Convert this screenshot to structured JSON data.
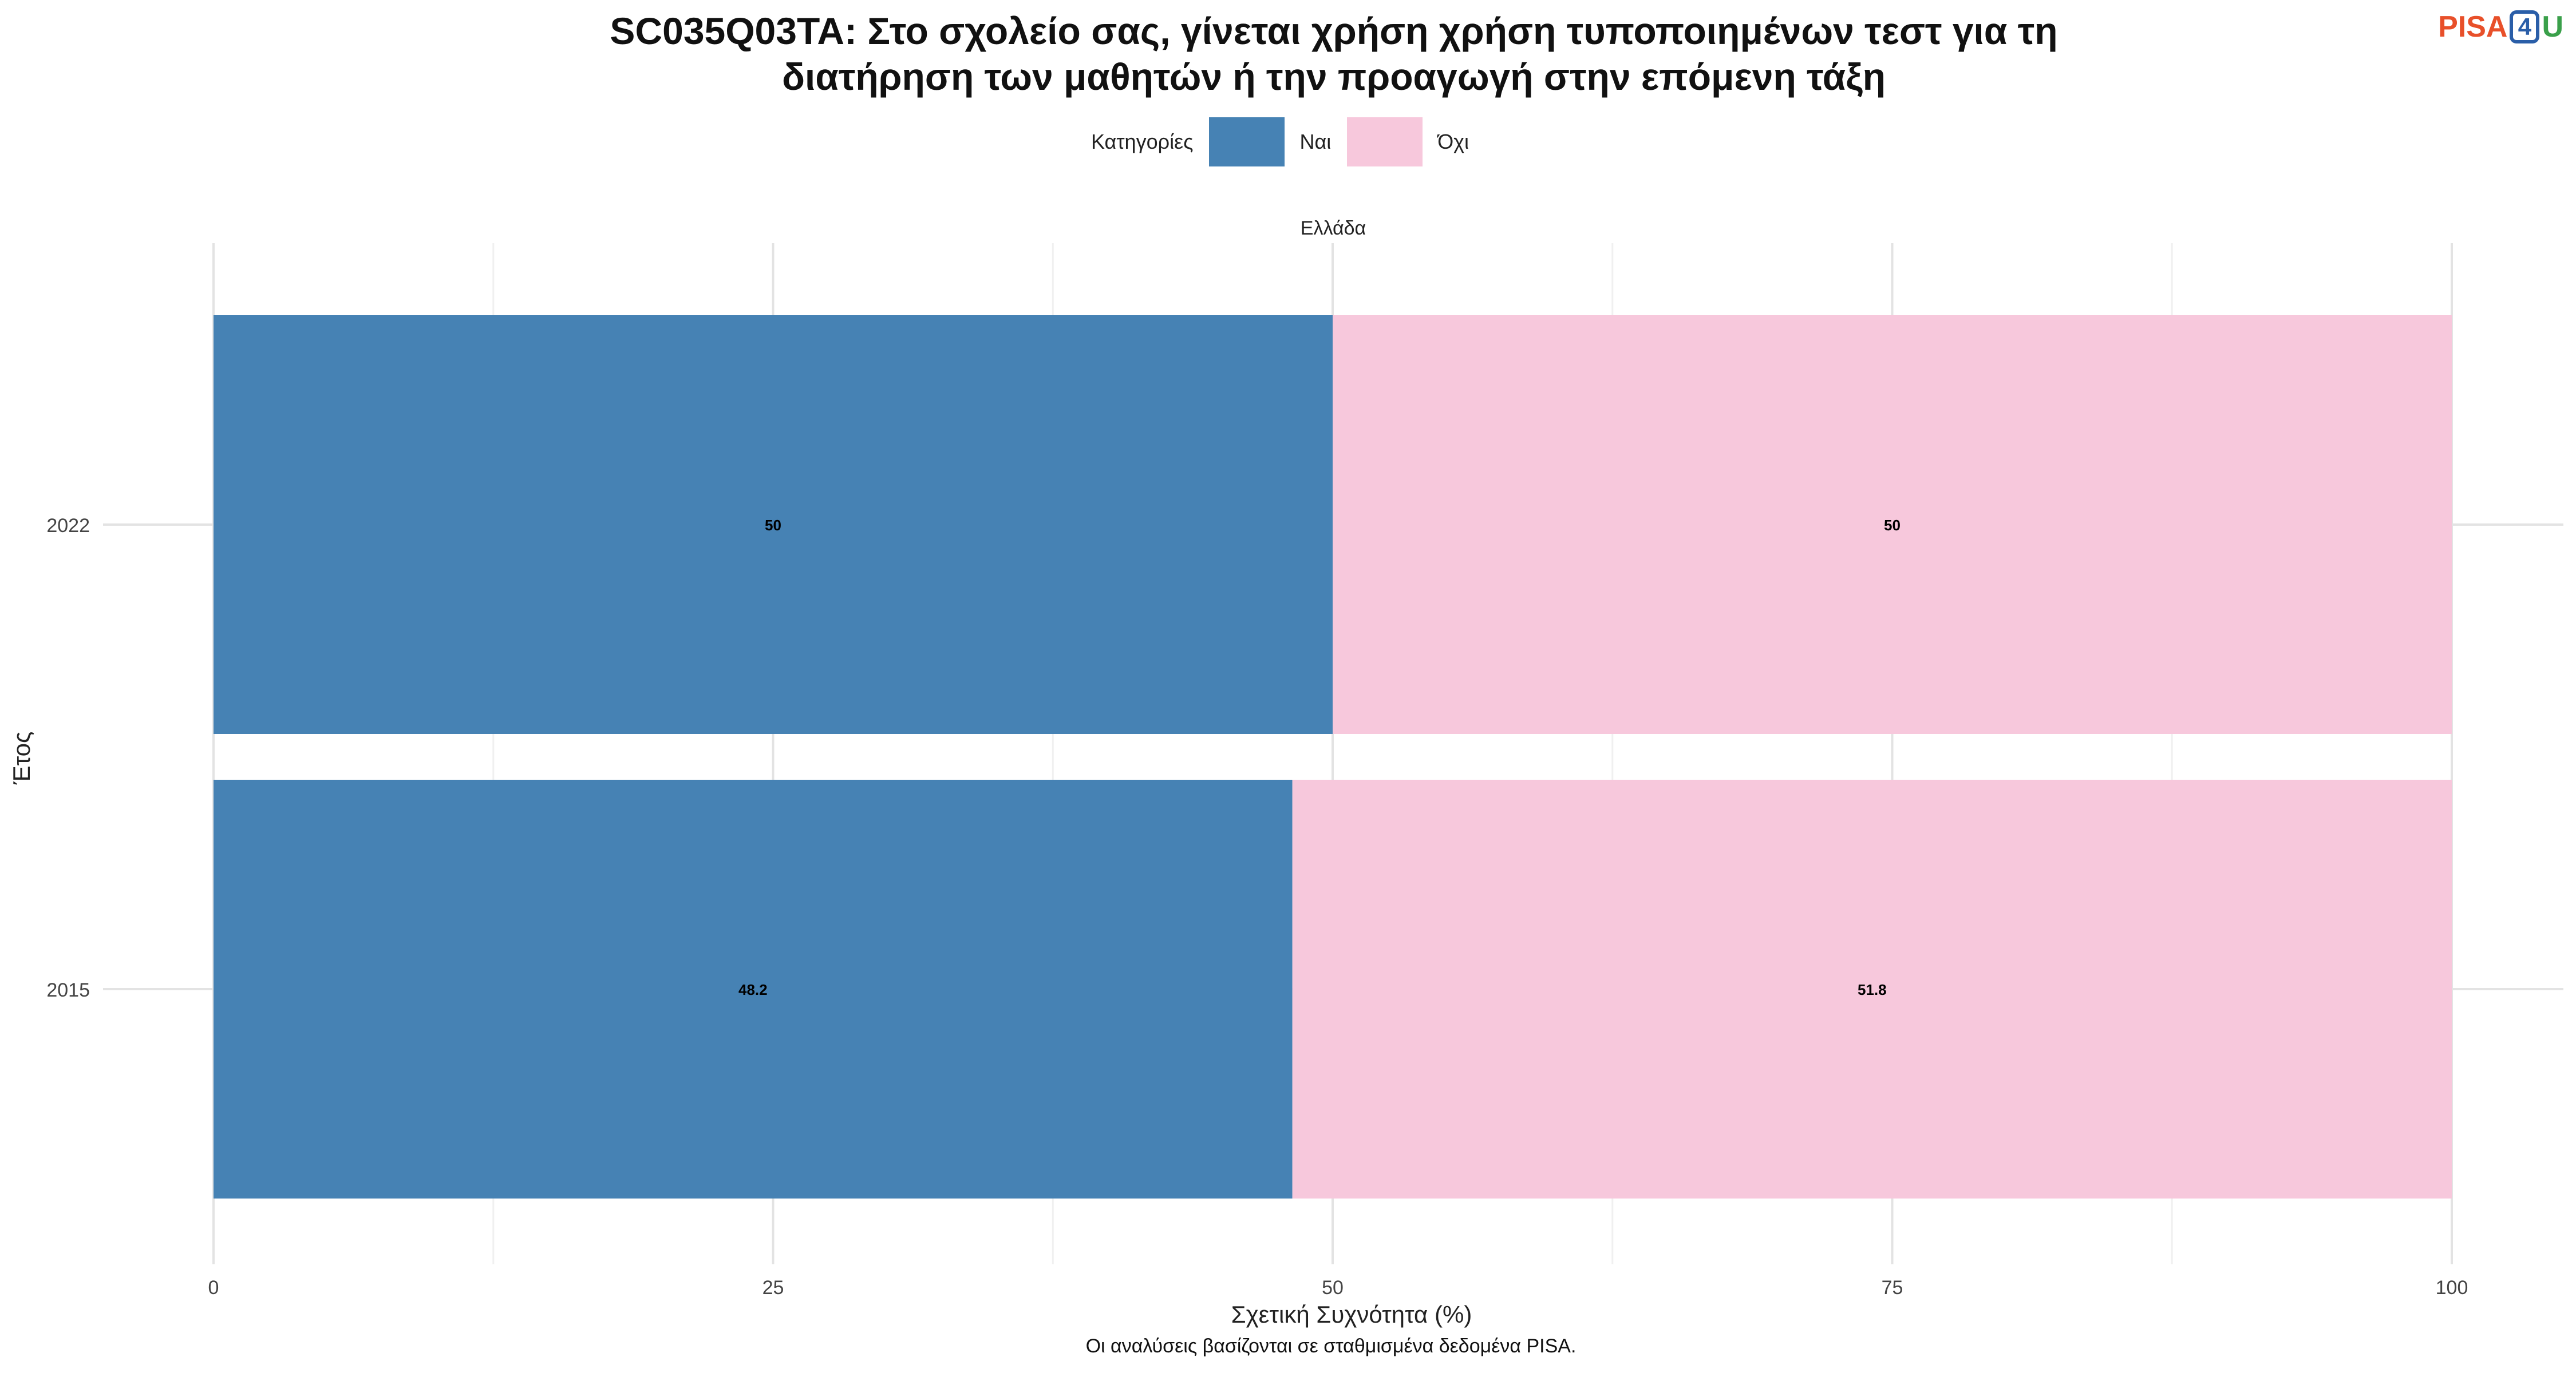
{
  "title_lines": [
    "SC035Q03TA: Στο σχολείο σας, γίνεται χρήση χρήση τυποποιημένων τεστ για τη",
    "διατήρηση των μαθητών ή την προαγωγή στην επόμενη τάξη"
  ],
  "logo": {
    "pisa": "PISA",
    "four": "4",
    "u": "U"
  },
  "legend": {
    "title": "Κατηγορίες",
    "items": [
      {
        "label": "Ναι",
        "color": "#4682b4"
      },
      {
        "label": "Όχι",
        "color": "#f7c8dc"
      }
    ]
  },
  "footer_note": "Οι αναλύσεις βασίζονται σε σταθμισμένα δεδομένα PISA.",
  "chart_data": {
    "type": "bar",
    "orientation": "horizontal",
    "stacked": true,
    "facet_label": "Ελλάδα",
    "categories": [
      "2022",
      "2015"
    ],
    "series": [
      {
        "name": "Ναι",
        "color": "#4682b4",
        "values": [
          50,
          48.2
        ],
        "labels": [
          "50",
          "48.2"
        ]
      },
      {
        "name": "Όχι",
        "color": "#f7c8dc",
        "values": [
          50,
          51.8
        ],
        "labels": [
          "50",
          "51.8"
        ]
      }
    ],
    "xlabel": "Σχετική Συχνότητα (%)",
    "ylabel": "Έτος",
    "xlim": [
      0,
      100
    ],
    "xticks": [
      0,
      25,
      50,
      75,
      100
    ],
    "xtick_labels": [
      "0",
      "25",
      "50",
      "75",
      "100"
    ],
    "grid": true
  }
}
